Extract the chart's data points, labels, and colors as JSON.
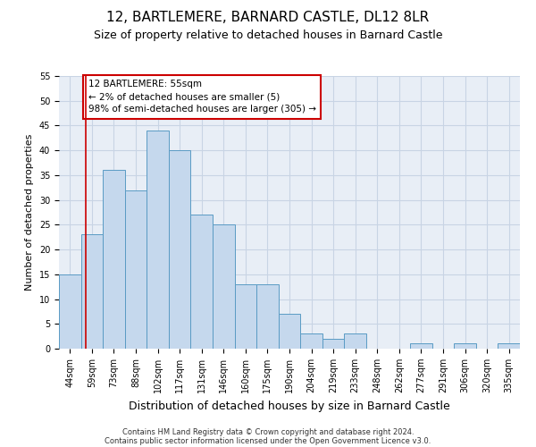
{
  "title": "12, BARTLEMERE, BARNARD CASTLE, DL12 8LR",
  "subtitle": "Size of property relative to detached houses in Barnard Castle",
  "xlabel": "Distribution of detached houses by size in Barnard Castle",
  "ylabel": "Number of detached properties",
  "footnote1": "Contains HM Land Registry data © Crown copyright and database right 2024.",
  "footnote2": "Contains public sector information licensed under the Open Government Licence v3.0.",
  "bins": [
    "44sqm",
    "59sqm",
    "73sqm",
    "88sqm",
    "102sqm",
    "117sqm",
    "131sqm",
    "146sqm",
    "160sqm",
    "175sqm",
    "190sqm",
    "204sqm",
    "219sqm",
    "233sqm",
    "248sqm",
    "262sqm",
    "277sqm",
    "291sqm",
    "306sqm",
    "320sqm",
    "335sqm"
  ],
  "values": [
    15,
    23,
    36,
    32,
    44,
    40,
    27,
    25,
    13,
    13,
    7,
    3,
    2,
    3,
    0,
    0,
    1,
    0,
    1,
    0,
    1
  ],
  "bar_color": "#c5d8ed",
  "bar_edge_color": "#5a9bc4",
  "bar_linewidth": 0.7,
  "grid_color": "#c8d4e4",
  "background_color": "#e8eef6",
  "ylim": [
    0,
    55
  ],
  "yticks": [
    0,
    5,
    10,
    15,
    20,
    25,
    30,
    35,
    40,
    45,
    50,
    55
  ],
  "red_line_x": 0.73,
  "annotation_text": "12 BARTLEMERE: 55sqm\n← 2% of detached houses are smaller (5)\n98% of semi-detached houses are larger (305) →",
  "annotation_box_color": "#ffffff",
  "annotation_border_color": "#cc0000",
  "title_fontsize": 11,
  "subtitle_fontsize": 9,
  "tick_fontsize": 7,
  "ylabel_fontsize": 8,
  "xlabel_fontsize": 9,
  "annot_fontsize": 7.5
}
